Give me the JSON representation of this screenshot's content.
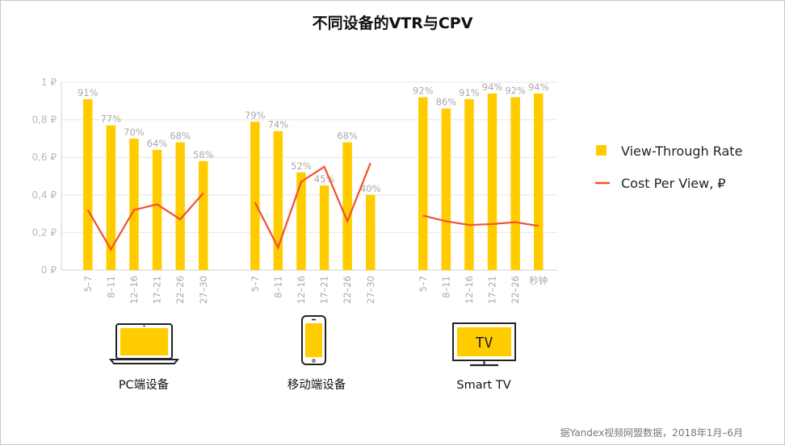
{
  "chart_data": {
    "type": "bar",
    "title": "不同设备的VTR与CPV",
    "y_ticks": [
      "0 ₽",
      "0,2 ₽",
      "0,4 ₽",
      "0,6 ₽",
      "0,8 ₽",
      "1 ₽"
    ],
    "ylim": [
      0,
      1
    ],
    "grid": true,
    "legend_position": "right",
    "series_names": {
      "vtr": "View-Through Rate",
      "cpv": "Cost Per View, ₽"
    },
    "colors": {
      "bar": "#FFCC00",
      "line": "#F0522A",
      "grid": "#e6e6e6",
      "axis": "#d0d0d0"
    },
    "groups": [
      {
        "name": "PC端设备",
        "icon": "laptop-icon",
        "categories": [
          "5–7",
          "8–11",
          "12–16",
          "17–21",
          "22–26",
          "27–30"
        ],
        "vtr": [
          0.91,
          0.77,
          0.7,
          0.64,
          0.68,
          0.58
        ],
        "vtr_labels": [
          "91%",
          "77%",
          "70%",
          "64%",
          "68%",
          "58%"
        ],
        "cpv": [
          0.32,
          0.11,
          0.32,
          0.35,
          0.27,
          0.41
        ]
      },
      {
        "name": "移动端设备",
        "icon": "smartphone-icon",
        "categories": [
          "5–7",
          "8–11",
          "12–16",
          "17–21",
          "22–26",
          "27–30"
        ],
        "vtr": [
          0.79,
          0.74,
          0.52,
          0.45,
          0.68,
          0.4
        ],
        "vtr_labels": [
          "79%",
          "74%",
          "52%",
          "45%",
          "68%",
          "40%"
        ],
        "cpv": [
          0.36,
          0.12,
          0.47,
          0.55,
          0.26,
          0.57
        ]
      },
      {
        "name": "Smart TV",
        "icon": "tv-icon",
        "tv_screen_text": "TV",
        "categories": [
          "5–7",
          "8–11",
          "12–16",
          "17–21",
          "22–26",
          "秒钟"
        ],
        "vtr": [
          0.92,
          0.86,
          0.91,
          0.94,
          0.92,
          0.94
        ],
        "vtr_labels": [
          "92%",
          "86%",
          "91%",
          "94%",
          "92%",
          "94%"
        ],
        "cpv": [
          0.29,
          0.26,
          0.24,
          0.245,
          0.255,
          0.235
        ]
      }
    ],
    "source": "据Yandex视频网盟数据，2018年1月–6月"
  }
}
